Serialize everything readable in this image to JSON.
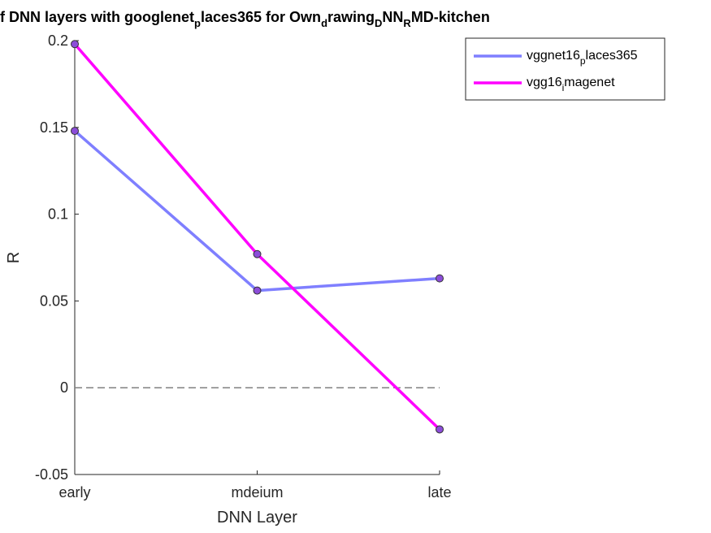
{
  "chart_data": {
    "type": "line",
    "title": "f DNN layers with googlenet_places365 for Own_drawing_DNN_RMD-kitchen",
    "xlabel": "DNN Layer",
    "ylabel": "R",
    "categories": [
      "early",
      "mdeium",
      "late"
    ],
    "ylim": [
      -0.05,
      0.2
    ],
    "yticks": [
      -0.05,
      0,
      0.05,
      0.1,
      0.15,
      0.2
    ],
    "ytick_labels": [
      "-0.05",
      "0",
      "0.05",
      "0.1",
      "0.15",
      "0.2"
    ],
    "zero_line": true,
    "grid": false,
    "legend_position": "top-right",
    "series": [
      {
        "name": "vggnet16_places365",
        "values": [
          0.148,
          0.056,
          0.063
        ],
        "color": "#7f7fff"
      },
      {
        "name": "vgg16_imagenet",
        "values": [
          0.198,
          0.077,
          -0.024
        ],
        "color": "#ff00ff"
      }
    ],
    "marker_face_color": "#8c4dd9"
  }
}
